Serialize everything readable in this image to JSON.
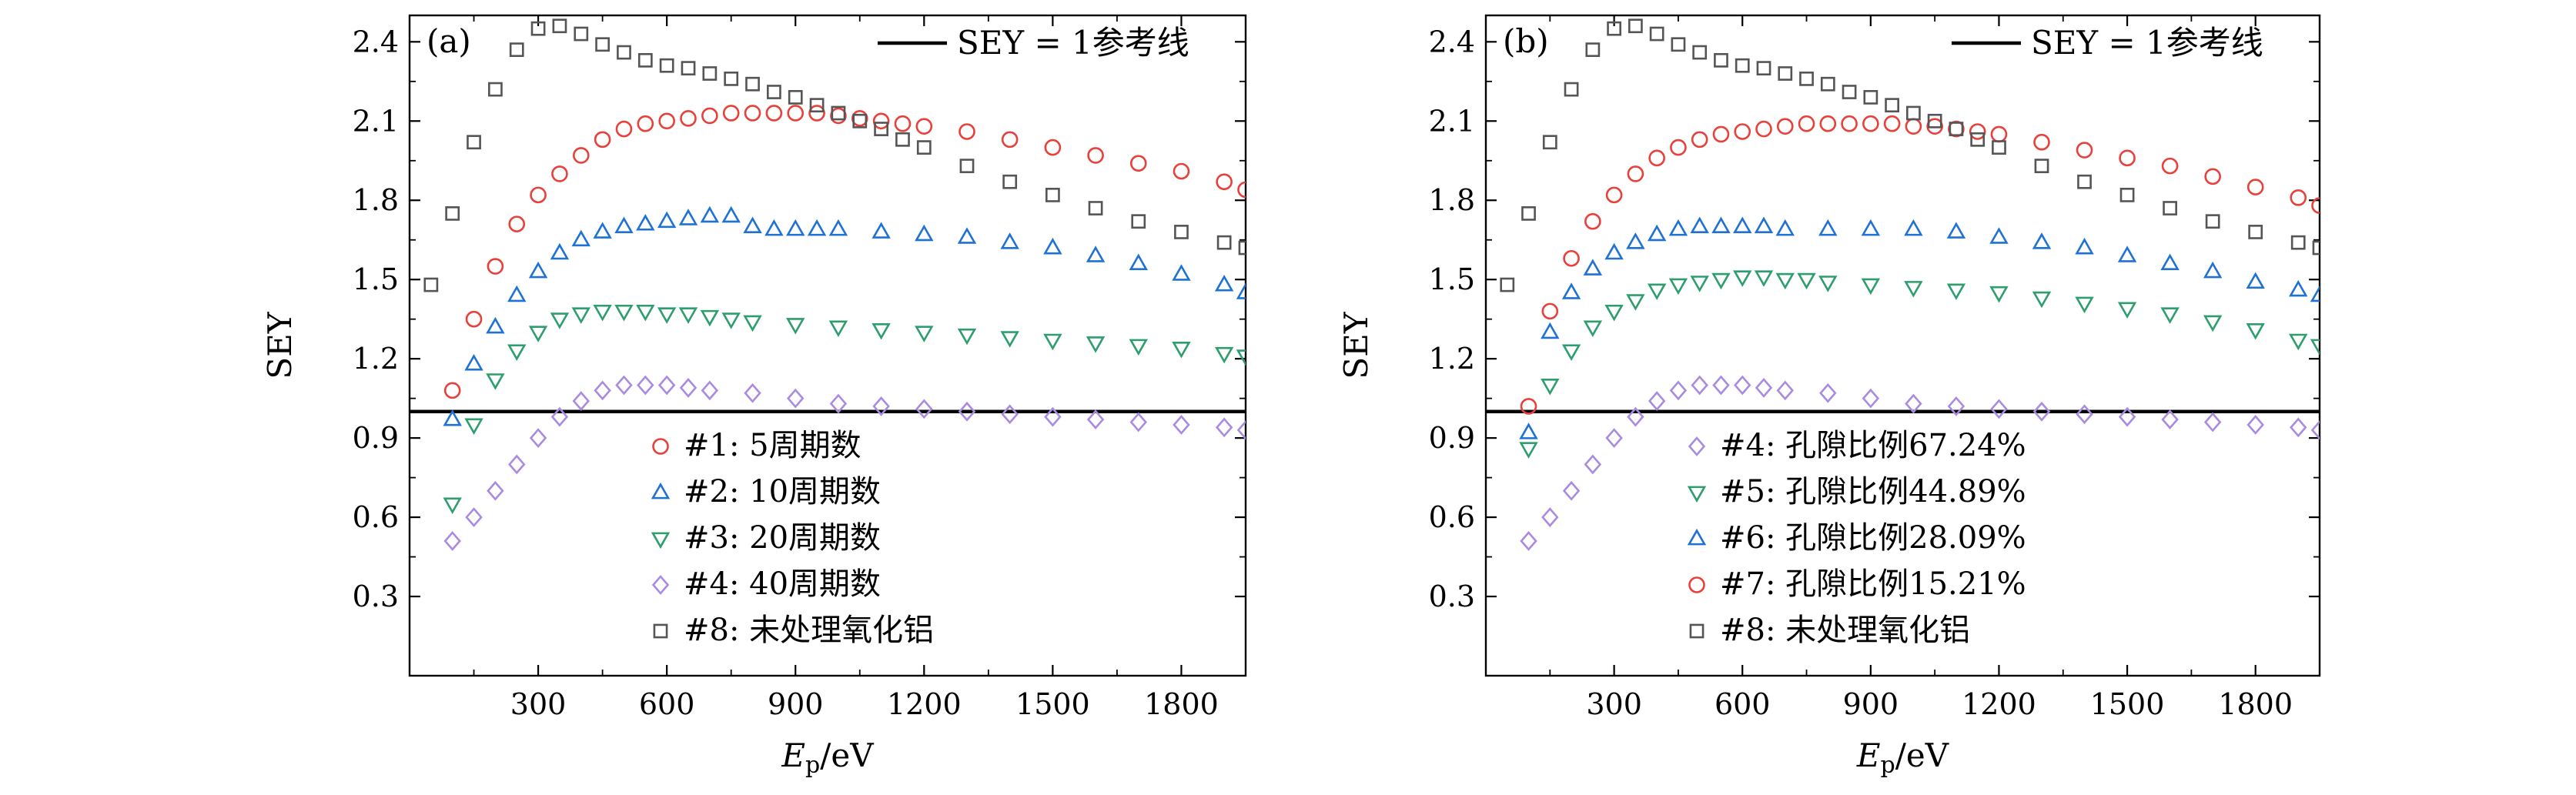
{
  "chart_data": [
    {
      "type": "scatter",
      "panel_label": "(a)",
      "xlabel_main": "E",
      "xlabel_sub": "p",
      "xlabel_unit": "/eV",
      "ylabel": "SEY",
      "xlim": [
        0,
        1950
      ],
      "ylim": [
        0,
        2.5
      ],
      "xticks": [
        300,
        600,
        900,
        1200,
        1500,
        1800
      ],
      "yticks": [
        0.3,
        0.6,
        0.9,
        1.2,
        1.5,
        1.8,
        2.1,
        2.4
      ],
      "reference_line": {
        "y": 1.0,
        "label": "SEY = 1参考线"
      },
      "legend_position": "bottom-center",
      "series": [
        {
          "name": "#1: 5周期数",
          "marker": "circle",
          "color": "#e8403a",
          "x": [
            100,
            150,
            200,
            250,
            300,
            350,
            400,
            450,
            500,
            550,
            600,
            650,
            700,
            750,
            800,
            850,
            900,
            950,
            1000,
            1050,
            1100,
            1150,
            1200,
            1300,
            1400,
            1500,
            1600,
            1700,
            1800,
            1900,
            1950
          ],
          "y": [
            1.08,
            1.35,
            1.55,
            1.71,
            1.82,
            1.9,
            1.97,
            2.03,
            2.07,
            2.09,
            2.1,
            2.11,
            2.12,
            2.13,
            2.13,
            2.13,
            2.13,
            2.13,
            2.12,
            2.11,
            2.1,
            2.09,
            2.08,
            2.06,
            2.03,
            2.0,
            1.97,
            1.94,
            1.91,
            1.87,
            1.84
          ]
        },
        {
          "name": "#2: 10周期数",
          "marker": "triangle-up",
          "color": "#1f72d4",
          "x": [
            100,
            150,
            200,
            250,
            300,
            350,
            400,
            450,
            500,
            550,
            600,
            650,
            700,
            750,
            800,
            850,
            900,
            950,
            1000,
            1100,
            1200,
            1300,
            1400,
            1500,
            1600,
            1700,
            1800,
            1900,
            1950
          ],
          "y": [
            0.97,
            1.18,
            1.32,
            1.44,
            1.53,
            1.6,
            1.65,
            1.68,
            1.7,
            1.71,
            1.72,
            1.73,
            1.74,
            1.74,
            1.7,
            1.69,
            1.69,
            1.69,
            1.69,
            1.68,
            1.67,
            1.66,
            1.64,
            1.62,
            1.59,
            1.56,
            1.52,
            1.48,
            1.45
          ]
        },
        {
          "name": "#3: 20周期数",
          "marker": "triangle-down",
          "color": "#2e9e6e",
          "x": [
            100,
            150,
            200,
            250,
            300,
            350,
            400,
            450,
            500,
            550,
            600,
            650,
            700,
            750,
            800,
            900,
            1000,
            1100,
            1200,
            1300,
            1400,
            1500,
            1600,
            1700,
            1800,
            1900,
            1950
          ],
          "y": [
            0.65,
            0.95,
            1.12,
            1.23,
            1.3,
            1.35,
            1.37,
            1.38,
            1.38,
            1.38,
            1.37,
            1.37,
            1.36,
            1.35,
            1.34,
            1.33,
            1.32,
            1.31,
            1.3,
            1.29,
            1.28,
            1.27,
            1.26,
            1.25,
            1.24,
            1.22,
            1.21
          ]
        },
        {
          "name": "#4: 40周期数",
          "marker": "diamond",
          "color": "#a98be0",
          "x": [
            100,
            150,
            200,
            250,
            300,
            350,
            400,
            450,
            500,
            550,
            600,
            650,
            700,
            800,
            900,
            1000,
            1100,
            1200,
            1300,
            1400,
            1500,
            1600,
            1700,
            1800,
            1900,
            1950
          ],
          "y": [
            0.51,
            0.6,
            0.7,
            0.8,
            0.9,
            0.98,
            1.04,
            1.08,
            1.1,
            1.1,
            1.1,
            1.09,
            1.08,
            1.07,
            1.05,
            1.03,
            1.02,
            1.01,
            1.0,
            0.99,
            0.98,
            0.97,
            0.96,
            0.95,
            0.94,
            0.93
          ]
        },
        {
          "name": "#8: 未处理氧化铝",
          "marker": "square",
          "color": "#555555",
          "x": [
            50,
            100,
            150,
            200,
            250,
            300,
            350,
            400,
            450,
            500,
            550,
            600,
            650,
            700,
            750,
            800,
            850,
            900,
            950,
            1000,
            1050,
            1100,
            1150,
            1200,
            1300,
            1400,
            1500,
            1600,
            1700,
            1800,
            1900,
            1950
          ],
          "y": [
            1.48,
            1.75,
            2.02,
            2.22,
            2.37,
            2.45,
            2.46,
            2.43,
            2.39,
            2.36,
            2.33,
            2.31,
            2.3,
            2.28,
            2.26,
            2.24,
            2.21,
            2.19,
            2.16,
            2.13,
            2.1,
            2.07,
            2.03,
            2.0,
            1.93,
            1.87,
            1.82,
            1.77,
            1.72,
            1.68,
            1.64,
            1.62
          ]
        }
      ]
    },
    {
      "type": "scatter",
      "panel_label": "(b)",
      "xlabel_main": "E",
      "xlabel_sub": "p",
      "xlabel_unit": "/eV",
      "ylabel": "SEY",
      "xlim": [
        0,
        1950
      ],
      "ylim": [
        0,
        2.5
      ],
      "xticks": [
        300,
        600,
        900,
        1200,
        1500,
        1800
      ],
      "yticks": [
        0.3,
        0.6,
        0.9,
        1.2,
        1.5,
        1.8,
        2.1,
        2.4
      ],
      "reference_line": {
        "y": 1.0,
        "label": "SEY = 1参考线"
      },
      "legend_position": "bottom-center",
      "series": [
        {
          "name": "#4: 孔隙比例67.24%",
          "marker": "diamond",
          "color": "#a98be0",
          "x": [
            100,
            150,
            200,
            250,
            300,
            350,
            400,
            450,
            500,
            550,
            600,
            650,
            700,
            800,
            900,
            1000,
            1100,
            1200,
            1300,
            1400,
            1500,
            1600,
            1700,
            1800,
            1900,
            1950
          ],
          "y": [
            0.51,
            0.6,
            0.7,
            0.8,
            0.9,
            0.98,
            1.04,
            1.08,
            1.1,
            1.1,
            1.1,
            1.09,
            1.08,
            1.07,
            1.05,
            1.03,
            1.02,
            1.01,
            1.0,
            0.99,
            0.98,
            0.97,
            0.96,
            0.95,
            0.94,
            0.93
          ]
        },
        {
          "name": "#5: 孔隙比例44.89%",
          "marker": "triangle-down",
          "color": "#2e9e6e",
          "x": [
            100,
            150,
            200,
            250,
            300,
            350,
            400,
            450,
            500,
            550,
            600,
            650,
            700,
            750,
            800,
            900,
            1000,
            1100,
            1200,
            1300,
            1400,
            1500,
            1600,
            1700,
            1800,
            1900,
            1950
          ],
          "y": [
            0.86,
            1.1,
            1.23,
            1.32,
            1.38,
            1.42,
            1.46,
            1.48,
            1.49,
            1.5,
            1.51,
            1.51,
            1.5,
            1.5,
            1.49,
            1.48,
            1.47,
            1.46,
            1.45,
            1.43,
            1.41,
            1.39,
            1.37,
            1.34,
            1.31,
            1.27,
            1.25
          ]
        },
        {
          "name": "#6: 孔隙比例28.09%",
          "marker": "triangle-up",
          "color": "#1f72d4",
          "x": [
            100,
            150,
            200,
            250,
            300,
            350,
            400,
            450,
            500,
            550,
            600,
            650,
            700,
            800,
            900,
            1000,
            1100,
            1200,
            1300,
            1400,
            1500,
            1600,
            1700,
            1800,
            1900,
            1950
          ],
          "y": [
            0.92,
            1.3,
            1.45,
            1.54,
            1.6,
            1.64,
            1.67,
            1.69,
            1.7,
            1.7,
            1.7,
            1.7,
            1.69,
            1.69,
            1.69,
            1.69,
            1.68,
            1.66,
            1.64,
            1.62,
            1.59,
            1.56,
            1.53,
            1.49,
            1.46,
            1.44
          ]
        },
        {
          "name": "#7: 孔隙比例15.21%",
          "marker": "circle",
          "color": "#e8403a",
          "x": [
            100,
            150,
            200,
            250,
            300,
            350,
            400,
            450,
            500,
            550,
            600,
            650,
            700,
            750,
            800,
            850,
            900,
            950,
            1000,
            1050,
            1100,
            1150,
            1200,
            1300,
            1400,
            1500,
            1600,
            1700,
            1800,
            1900,
            1950
          ],
          "y": [
            1.02,
            1.38,
            1.58,
            1.72,
            1.82,
            1.9,
            1.96,
            2.0,
            2.03,
            2.05,
            2.06,
            2.07,
            2.08,
            2.09,
            2.09,
            2.09,
            2.09,
            2.09,
            2.08,
            2.08,
            2.07,
            2.06,
            2.05,
            2.02,
            1.99,
            1.96,
            1.93,
            1.89,
            1.85,
            1.81,
            1.78
          ]
        },
        {
          "name": "#8: 未处理氧化铝",
          "marker": "square",
          "color": "#555555",
          "x": [
            50,
            100,
            150,
            200,
            250,
            300,
            350,
            400,
            450,
            500,
            550,
            600,
            650,
            700,
            750,
            800,
            850,
            900,
            950,
            1000,
            1050,
            1100,
            1150,
            1200,
            1300,
            1400,
            1500,
            1600,
            1700,
            1800,
            1900,
            1950
          ],
          "y": [
            1.48,
            1.75,
            2.02,
            2.22,
            2.37,
            2.45,
            2.46,
            2.43,
            2.39,
            2.36,
            2.33,
            2.31,
            2.3,
            2.28,
            2.26,
            2.24,
            2.21,
            2.19,
            2.16,
            2.13,
            2.1,
            2.07,
            2.03,
            2.0,
            1.93,
            1.87,
            1.82,
            1.77,
            1.72,
            1.68,
            1.64,
            1.62
          ]
        }
      ]
    }
  ]
}
